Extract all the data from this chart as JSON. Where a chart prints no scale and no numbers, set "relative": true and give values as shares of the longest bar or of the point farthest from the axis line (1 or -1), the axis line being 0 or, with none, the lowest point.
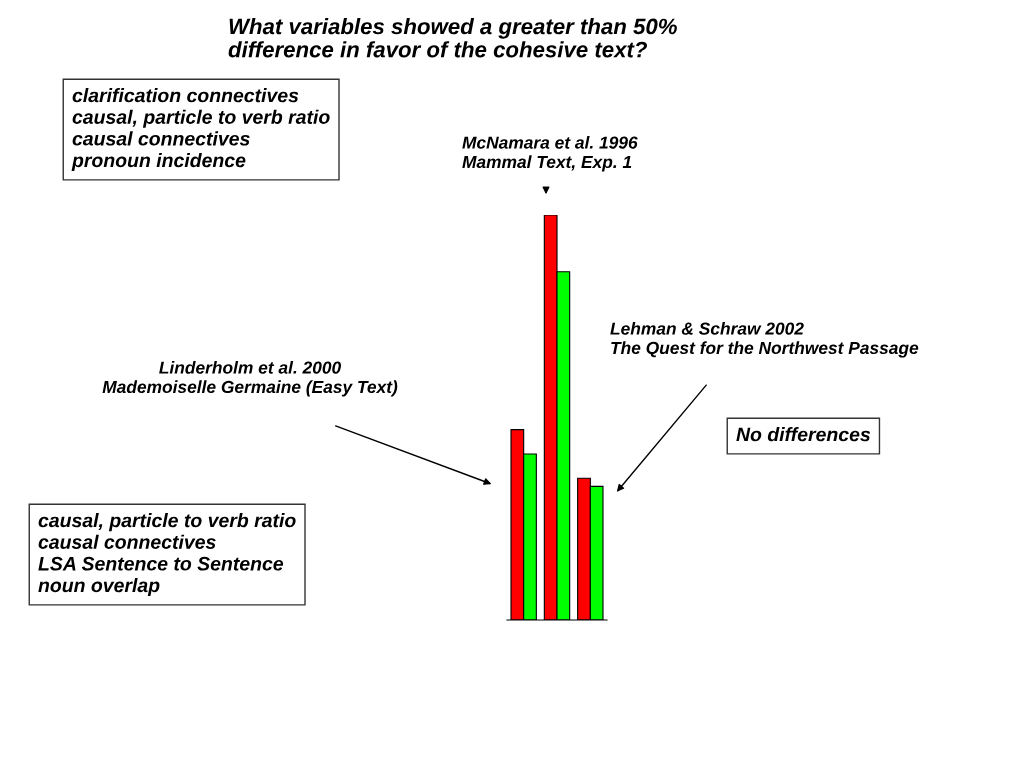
{
  "chart_data": {
    "type": "bar",
    "relative": true,
    "title": "What variables showed a greater than 50%\ndifference in favor of the cohesive text?",
    "categories": [
      null,
      null,
      null
    ],
    "series": [
      {
        "color": "#ff0000",
        "values": [
          0.47,
          1,
          0.35
        ]
      },
      {
        "color": "#00ff00",
        "values": [
          0.41,
          0.86,
          0.33
        ]
      }
    ],
    "annotations": [
      "clarification connectives\ncausal, particle to verb ratio\ncausal connectives\npronoun incidence",
      "McNamara et al. 1996\nMammal Text, Exp. 1",
      "Lehman & Schraw 2002\nThe Quest for the Northwest Passage",
      "Linderholm et al. 2000\nMademoiselle Germaine (Easy Text)",
      "No differences",
      "causal, particle to verb ratio\ncausal connectives\nLSA Sentence to Sentence\nnoun overlap"
    ],
    "orientation": "vertical"
  }
}
